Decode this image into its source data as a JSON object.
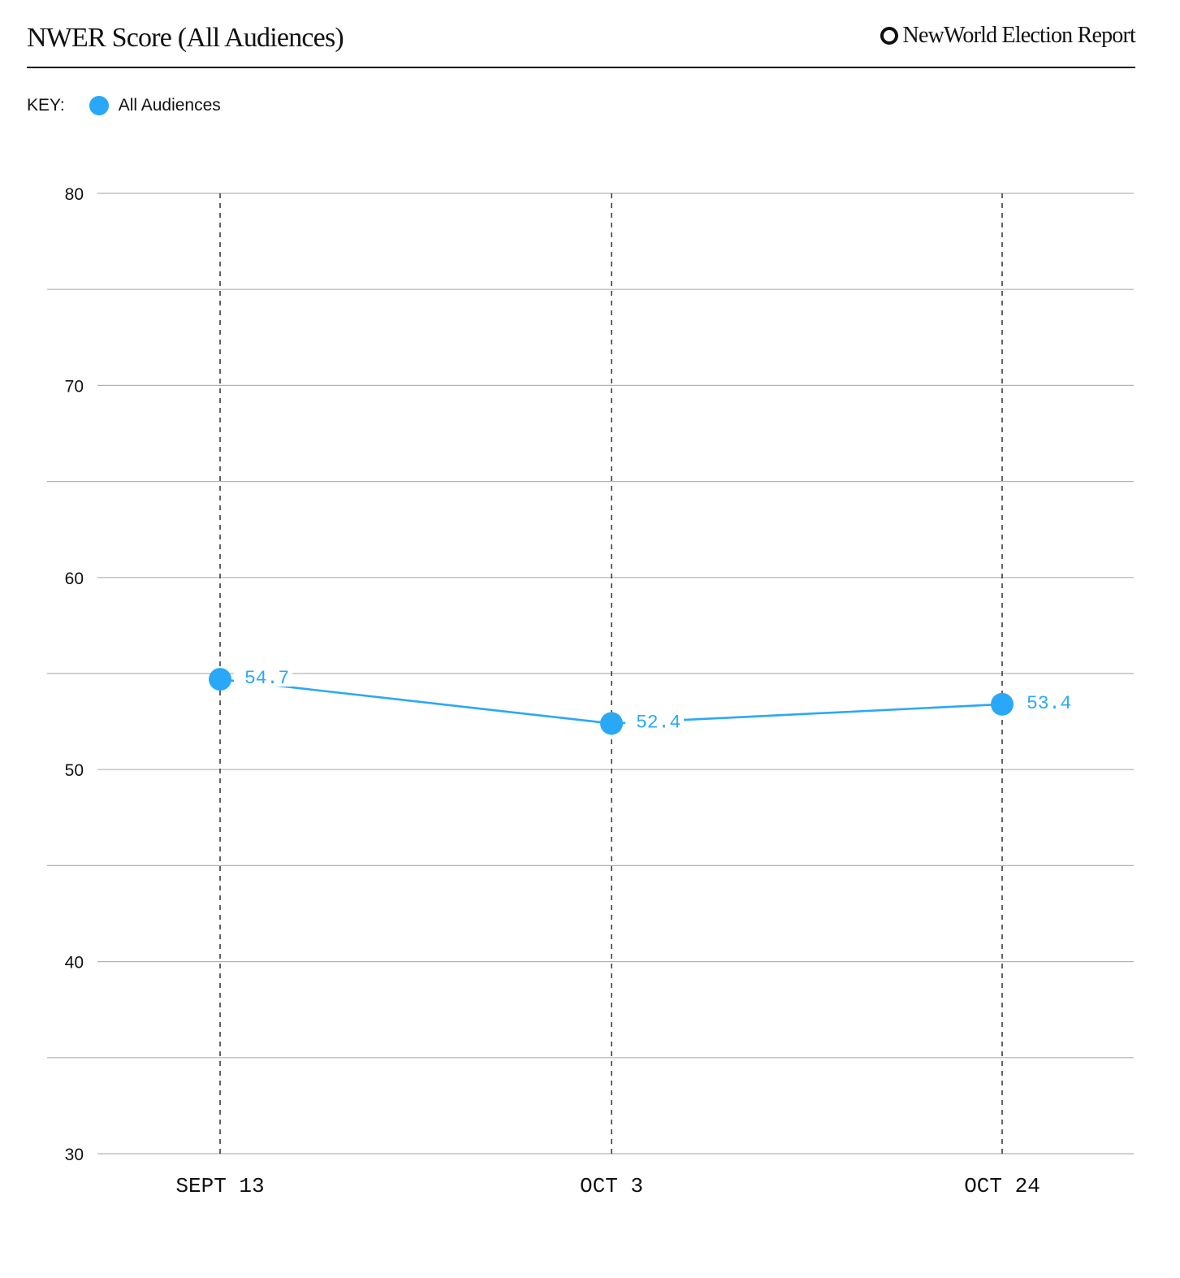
{
  "header": {
    "title": "NWER Score (All Audiences)",
    "brand": "NewWorld Election Report",
    "brand_icon": "ring-logo-icon"
  },
  "legend": {
    "key_label": "KEY:",
    "items": [
      {
        "label": "All Audiences",
        "color": "#2aa8f8"
      }
    ]
  },
  "chart_data": {
    "type": "line",
    "categories": [
      "SEPT 13",
      "OCT 3",
      "OCT 24"
    ],
    "series": [
      {
        "name": "All Audiences",
        "values": [
          54.7,
          52.4,
          53.4
        ],
        "color": "#2aa8f8"
      }
    ],
    "data_labels": [
      "54.7",
      "52.4",
      "53.4"
    ],
    "ylim": [
      30,
      80
    ],
    "yticks": [
      30,
      40,
      50,
      60,
      70,
      80
    ],
    "grid": true,
    "legend_position": "top-left"
  }
}
